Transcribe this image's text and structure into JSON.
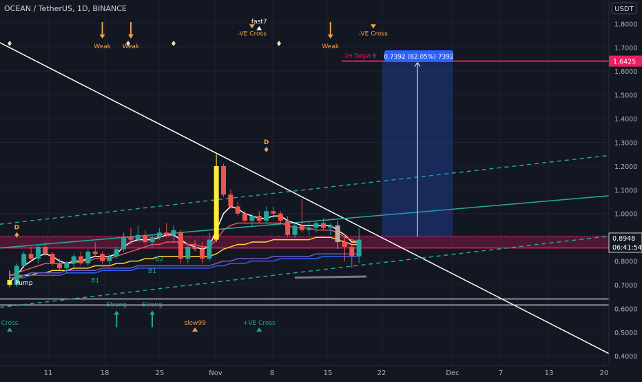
{
  "header": {
    "symbol": "OCEAN / TetherUS, 1D, BINANCE",
    "currency_button": "USDT"
  },
  "chart_data": {
    "type": "candlestick",
    "title": "OCEAN / TetherUS, 1D, BINANCE",
    "ylim": [
      0.36,
      1.9
    ],
    "y_ticks": [
      "0.4000",
      "0.5000",
      "0.6000",
      "0.7000",
      "0.8000",
      "0.9000",
      "1.0000",
      "1.1000",
      "1.2000",
      "1.3000",
      "1.4000",
      "1.5000",
      "1.6000",
      "1.7000",
      "1.8000"
    ],
    "x_ticks": [
      "11",
      "18",
      "25",
      "Nov",
      "8",
      "15",
      "22",
      "Dec",
      "7",
      "13",
      "20"
    ],
    "candles": [
      {
        "o": 0.72,
        "h": 0.76,
        "l": 0.69,
        "c": 0.7
      },
      {
        "o": 0.7,
        "h": 0.79,
        "l": 0.69,
        "c": 0.78
      },
      {
        "o": 0.78,
        "h": 0.84,
        "l": 0.77,
        "c": 0.83
      },
      {
        "o": 0.83,
        "h": 0.86,
        "l": 0.8,
        "c": 0.81
      },
      {
        "o": 0.81,
        "h": 0.87,
        "l": 0.79,
        "c": 0.86
      },
      {
        "o": 0.86,
        "h": 0.88,
        "l": 0.82,
        "c": 0.83
      },
      {
        "o": 0.83,
        "h": 0.84,
        "l": 0.78,
        "c": 0.79
      },
      {
        "o": 0.79,
        "h": 0.81,
        "l": 0.76,
        "c": 0.77
      },
      {
        "o": 0.77,
        "h": 0.8,
        "l": 0.75,
        "c": 0.79
      },
      {
        "o": 0.79,
        "h": 0.83,
        "l": 0.77,
        "c": 0.82
      },
      {
        "o": 0.82,
        "h": 0.84,
        "l": 0.78,
        "c": 0.79
      },
      {
        "o": 0.79,
        "h": 0.85,
        "l": 0.78,
        "c": 0.84
      },
      {
        "o": 0.84,
        "h": 0.88,
        "l": 0.82,
        "c": 0.83
      },
      {
        "o": 0.83,
        "h": 0.84,
        "l": 0.79,
        "c": 0.8
      },
      {
        "o": 0.8,
        "h": 0.83,
        "l": 0.78,
        "c": 0.82
      },
      {
        "o": 0.82,
        "h": 0.86,
        "l": 0.81,
        "c": 0.85
      },
      {
        "o": 0.85,
        "h": 0.92,
        "l": 0.84,
        "c": 0.9
      },
      {
        "o": 0.9,
        "h": 0.94,
        "l": 0.87,
        "c": 0.89
      },
      {
        "o": 0.89,
        "h": 0.95,
        "l": 0.88,
        "c": 0.91
      },
      {
        "o": 0.91,
        "h": 0.93,
        "l": 0.87,
        "c": 0.88
      },
      {
        "o": 0.88,
        "h": 0.91,
        "l": 0.86,
        "c": 0.9
      },
      {
        "o": 0.9,
        "h": 0.94,
        "l": 0.89,
        "c": 0.92
      },
      {
        "o": 0.92,
        "h": 0.96,
        "l": 0.9,
        "c": 0.91
      },
      {
        "o": 0.91,
        "h": 0.95,
        "l": 0.88,
        "c": 0.93
      },
      {
        "o": 0.92,
        "h": 0.93,
        "l": 0.79,
        "c": 0.81
      },
      {
        "o": 0.81,
        "h": 0.87,
        "l": 0.79,
        "c": 0.86
      },
      {
        "o": 0.86,
        "h": 0.89,
        "l": 0.84,
        "c": 0.85
      },
      {
        "o": 0.85,
        "h": 0.88,
        "l": 0.79,
        "c": 0.81
      },
      {
        "o": 0.81,
        "h": 0.92,
        "l": 0.8,
        "c": 0.89
      },
      {
        "o": 0.89,
        "h": 1.25,
        "l": 0.88,
        "c": 1.2
      },
      {
        "o": 1.2,
        "h": 1.21,
        "l": 1.07,
        "c": 1.08
      },
      {
        "o": 1.08,
        "h": 1.1,
        "l": 1.02,
        "c": 1.03
      },
      {
        "o": 1.03,
        "h": 1.05,
        "l": 0.99,
        "c": 1.0
      },
      {
        "o": 1.0,
        "h": 1.01,
        "l": 0.96,
        "c": 0.97
      },
      {
        "o": 0.97,
        "h": 1.0,
        "l": 0.95,
        "c": 0.99
      },
      {
        "o": 0.99,
        "h": 1.01,
        "l": 0.96,
        "c": 0.97
      },
      {
        "o": 0.97,
        "h": 1.03,
        "l": 0.96,
        "c": 1.01
      },
      {
        "o": 1.01,
        "h": 1.03,
        "l": 0.98,
        "c": 1.0
      },
      {
        "o": 1.0,
        "h": 1.01,
        "l": 0.96,
        "c": 0.97
      },
      {
        "o": 0.97,
        "h": 0.99,
        "l": 0.9,
        "c": 0.91
      },
      {
        "o": 0.91,
        "h": 0.96,
        "l": 0.9,
        "c": 0.95
      },
      {
        "o": 0.95,
        "h": 1.06,
        "l": 0.92,
        "c": 0.93
      },
      {
        "o": 0.93,
        "h": 0.97,
        "l": 0.91,
        "c": 0.94
      },
      {
        "o": 0.94,
        "h": 0.97,
        "l": 0.92,
        "c": 0.96
      },
      {
        "o": 0.96,
        "h": 0.98,
        "l": 0.93,
        "c": 0.94
      },
      {
        "o": 0.94,
        "h": 0.96,
        "l": 0.91,
        "c": 0.95
      },
      {
        "o": 0.95,
        "h": 0.97,
        "l": 0.85,
        "c": 0.88
      },
      {
        "o": 0.88,
        "h": 0.91,
        "l": 0.8,
        "c": 0.86
      },
      {
        "o": 0.86,
        "h": 0.87,
        "l": 0.77,
        "c": 0.82
      },
      {
        "o": 0.82,
        "h": 0.94,
        "l": 0.79,
        "c": 0.89
      }
    ],
    "price_line": {
      "label": "1H Target B",
      "value": 1.6425,
      "price_label": "1.6425"
    },
    "current_price": {
      "value": 0.8948,
      "price_label": "0.8948",
      "countdown": "06:41:54"
    },
    "measure": {
      "label": "0.7392 (82.05%) 7392",
      "from": 0.9033,
      "to": 1.6425
    },
    "horizontal_levels": [
      0.64,
      0.615
    ],
    "moving_averages": [
      {
        "color": "#ffffff",
        "values": [
          0.71,
          0.74,
          0.78,
          0.8,
          0.82,
          0.83,
          0.82,
          0.8,
          0.79,
          0.8,
          0.8,
          0.81,
          0.82,
          0.82,
          0.82,
          0.83,
          0.86,
          0.88,
          0.89,
          0.89,
          0.89,
          0.9,
          0.91,
          0.91,
          0.89,
          0.87,
          0.86,
          0.85,
          0.86,
          0.93,
          1.0,
          1.03,
          1.02,
          1.0,
          0.99,
          0.98,
          0.98,
          0.99,
          0.99,
          0.97,
          0.96,
          0.95,
          0.95,
          0.95,
          0.95,
          0.95,
          0.93,
          0.91,
          0.88,
          0.88
        ]
      },
      {
        "color": "#ef5350",
        "values": [
          0.74,
          0.75,
          0.76,
          0.77,
          0.78,
          0.79,
          0.79,
          0.79,
          0.79,
          0.79,
          0.8,
          0.8,
          0.81,
          0.81,
          0.81,
          0.82,
          0.83,
          0.84,
          0.85,
          0.86,
          0.87,
          0.87,
          0.88,
          0.88,
          0.88,
          0.87,
          0.87,
          0.86,
          0.86,
          0.89,
          0.93,
          0.95,
          0.96,
          0.96,
          0.96,
          0.96,
          0.96,
          0.96,
          0.96,
          0.95,
          0.94,
          0.94,
          0.94,
          0.93,
          0.93,
          0.93,
          0.92,
          0.9,
          0.89,
          0.88
        ]
      },
      {
        "color": "#fdd835",
        "values": [
          0.73,
          0.73,
          0.74,
          0.74,
          0.75,
          0.75,
          0.76,
          0.76,
          0.76,
          0.77,
          0.77,
          0.77,
          0.78,
          0.78,
          0.78,
          0.79,
          0.79,
          0.8,
          0.8,
          0.81,
          0.81,
          0.82,
          0.82,
          0.82,
          0.82,
          0.82,
          0.82,
          0.82,
          0.82,
          0.83,
          0.85,
          0.86,
          0.87,
          0.87,
          0.88,
          0.88,
          0.88,
          0.89,
          0.89,
          0.89,
          0.89,
          0.89,
          0.89,
          0.9,
          0.9,
          0.9,
          0.89,
          0.88,
          0.87,
          0.87
        ]
      },
      {
        "color": "#7e57c2",
        "values": [
          0.74,
          0.74,
          0.74,
          0.75,
          0.75,
          0.75,
          0.75,
          0.75,
          0.76,
          0.76,
          0.76,
          0.76,
          0.76,
          0.77,
          0.77,
          0.77,
          0.77,
          0.77,
          0.78,
          0.78,
          0.78,
          0.78,
          0.78,
          0.78,
          0.78,
          0.78,
          0.78,
          0.78,
          0.78,
          0.79,
          0.8,
          0.8,
          0.81,
          0.81,
          0.81,
          0.81,
          0.81,
          0.82,
          0.82,
          0.82,
          0.82,
          0.82,
          0.82,
          0.83,
          0.83,
          0.83,
          0.83,
          0.83,
          0.83,
          0.83
        ]
      },
      {
        "color": "#2962ff",
        "values": [
          0.73,
          0.73,
          0.73,
          0.74,
          0.74,
          0.74,
          0.74,
          0.74,
          0.75,
          0.75,
          0.75,
          0.75,
          0.75,
          0.76,
          0.76,
          0.76,
          0.76,
          0.76,
          0.77,
          0.77,
          0.77,
          0.77,
          0.77,
          0.77,
          0.77,
          0.77,
          0.77,
          0.77,
          0.77,
          0.78,
          0.78,
          0.79,
          0.79,
          0.79,
          0.8,
          0.8,
          0.8,
          0.8,
          0.81,
          0.81,
          0.81,
          0.81,
          0.81,
          0.81,
          0.82,
          0.82,
          0.82,
          0.82,
          0.82,
          0.82
        ]
      }
    ],
    "annotations": [
      {
        "text": "Weak",
        "color": "#f0a04b",
        "kind": "arrow-down",
        "ix": 13,
        "price": 1.72
      },
      {
        "text": "Weak",
        "color": "#f0a04b",
        "kind": "arrow-down",
        "ix": 17,
        "price": 1.72
      },
      {
        "text": "Weak",
        "color": "#f0a04b",
        "kind": "arrow-down",
        "ix": 45,
        "price": 1.72
      },
      {
        "text": "-VE Cross",
        "color": "#f0a04b",
        "kind": "tri-down",
        "ix": 34,
        "price": 1.78
      },
      {
        "text": "-VE Cross",
        "color": "#f0a04b",
        "kind": "tri-down",
        "ix": 51,
        "price": 1.78
      },
      {
        "text": "fast7",
        "color": "#ffffff",
        "kind": "tri-up",
        "ix": 35,
        "price": 1.79
      },
      {
        "text": "D",
        "color": "#f0a04b",
        "kind": "diamond",
        "ix": 36,
        "price": 1.27
      },
      {
        "text": "D",
        "color": "#f0a04b",
        "kind": "diamond",
        "ix": 1,
        "price": 0.91
      },
      {
        "text": "Pump",
        "color": "#ffffff",
        "kind": "none",
        "ix": 2,
        "price": 0.7
      },
      {
        "text": "B1",
        "color": "#26a69a",
        "kind": "none",
        "ix": 12,
        "price": 0.71
      },
      {
        "text": "B1",
        "color": "#26a69a",
        "kind": "none",
        "ix": 20,
        "price": 0.75
      },
      {
        "text": "B2",
        "color": "#26a69a",
        "kind": "none",
        "ix": 21,
        "price": 0.8
      },
      {
        "text": "Strong",
        "color": "#26a69a",
        "kind": "arrow-up",
        "ix": 15,
        "price": 0.62
      },
      {
        "text": "Strong",
        "color": "#26a69a",
        "kind": "arrow-up",
        "ix": 20,
        "price": 0.62
      },
      {
        "text": "slow99",
        "color": "#f0a04b",
        "kind": "tri-up",
        "ix": 26,
        "price": 0.52
      },
      {
        "text": "+VE Cross",
        "color": "#26a69a",
        "kind": "tri-up",
        "ix": 35,
        "price": 0.52
      },
      {
        "text": "Cross",
        "color": "#26a69a",
        "kind": "tri-up",
        "ix": 0,
        "price": 0.52
      }
    ]
  },
  "colors": {
    "background": "#131722",
    "grid": "#1e2230",
    "up": "#26a69a",
    "down": "#ef5350",
    "accent": "#e91e63",
    "axis_text": "#b2b5be",
    "measure_box": "#2962ff"
  }
}
